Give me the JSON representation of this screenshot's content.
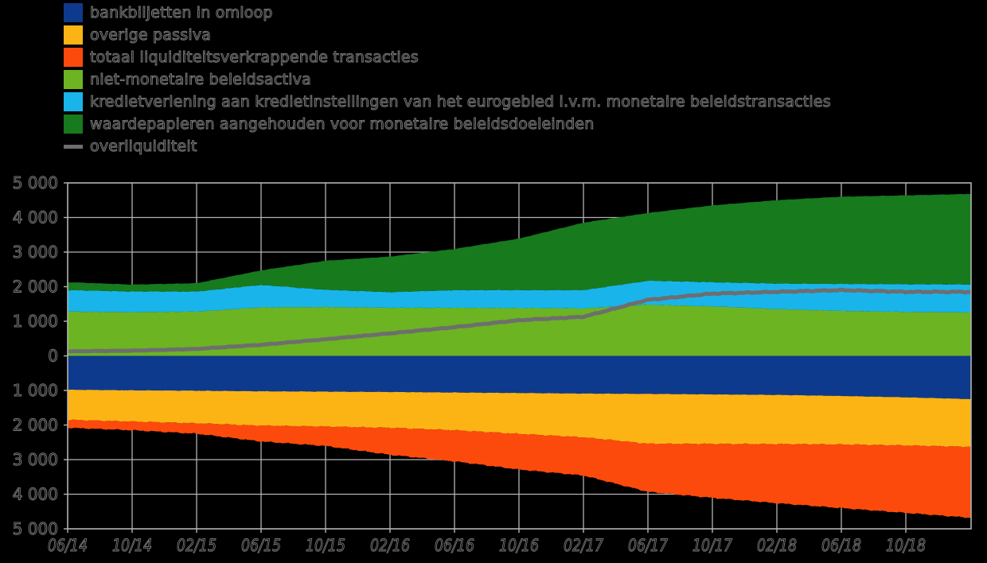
{
  "background": "#000000",
  "axis": {
    "frame_color": "#b3b3b3",
    "grid_color": "#b3b3b3",
    "tick_color": "#b3b3b3",
    "label_fill": "#000000",
    "label_outline": "#7a7a7a"
  },
  "legend": {
    "items": [
      {
        "label": "bankbiljetten in omloop",
        "color": "#0d3a8c",
        "swatch": "rect"
      },
      {
        "label": "overige passiva",
        "color": "#fcb414",
        "swatch": "rect"
      },
      {
        "label": "totaal liquiditeitsverkrappende transacties",
        "color": "#fc4a0c",
        "swatch": "rect"
      },
      {
        "label": "niet-monetaire beleidsactiva",
        "color": "#6cb422",
        "swatch": "rect"
      },
      {
        "label": "kredietverlening aan kredietinstellingen van het eurogebied i.v.m. monetaire beleidstransacties",
        "color": "#19b5ea",
        "swatch": "rect"
      },
      {
        "label": "waardepapieren aangehouden voor monetaire beleidsdoeleinden",
        "color": "#177a1d",
        "swatch": "rect"
      },
      {
        "label": "overliquiditeit",
        "color": "#6e6e6e",
        "swatch": "line"
      }
    ]
  },
  "chart_data": {
    "type": "area",
    "stacked": true,
    "mirrored_axis": true,
    "title": "",
    "xlabel": "",
    "ylabel": "",
    "ylim": [
      -5000,
      5000
    ],
    "grid": true,
    "legend_position": "top-left",
    "control_months": [
      0,
      4,
      8,
      12,
      16,
      20,
      24,
      28,
      32,
      36,
      40,
      44,
      48,
      52,
      56
    ],
    "series_positive": [
      {
        "name": "niet-monetaire beleidsactiva",
        "color": "#6cb422",
        "values": [
          1280,
          1260,
          1280,
          1400,
          1410,
          1390,
          1390,
          1380,
          1370,
          1480,
          1430,
          1350,
          1300,
          1270,
          1255
        ]
      },
      {
        "name": "kredietverlening aan kredietinstellingen van het eurogebied i.v.m. monetaire beleidstransacties",
        "color": "#19b5ea",
        "values": [
          620,
          600,
          580,
          650,
          500,
          450,
          510,
          520,
          530,
          690,
          700,
          740,
          780,
          800,
          810
        ]
      },
      {
        "name": "waardepapieren aangehouden voor monetaire beleidsdoeleinden",
        "color": "#177a1d",
        "values": [
          230,
          200,
          240,
          420,
          840,
          1030,
          1190,
          1490,
          1950,
          1960,
          2220,
          2410,
          2520,
          2570,
          2615
        ]
      }
    ],
    "series_negative": [
      {
        "name": "bankbiljetten in omloop",
        "color": "#0d3a8c",
        "values": [
          980,
          1000,
          1010,
          1025,
          1035,
          1045,
          1060,
          1075,
          1090,
          1100,
          1115,
          1130,
          1160,
          1200,
          1250
        ]
      },
      {
        "name": "overige passiva",
        "color": "#fcb414",
        "values": [
          870,
          900,
          940,
          990,
          1010,
          1035,
          1090,
          1180,
          1265,
          1440,
          1430,
          1420,
          1400,
          1390,
          1380
        ]
      },
      {
        "name": "totaal liquiditeitsverkrappende transacties",
        "color": "#fc4a0c",
        "values": [
          230,
          250,
          300,
          460,
          560,
          780,
          900,
          1030,
          1105,
          1390,
          1560,
          1710,
          1840,
          1950,
          2050
        ]
      }
    ],
    "line_series": {
      "name": "overliquiditeit",
      "color": "#6e6e6e",
      "values": [
        130,
        150,
        200,
        320,
        480,
        650,
        830,
        1030,
        1130,
        1620,
        1800,
        1850,
        1900,
        1850,
        1850
      ]
    },
    "x_ticks": {
      "months": [
        0,
        4,
        8,
        12,
        16,
        20,
        24,
        28,
        32,
        36,
        40,
        44,
        48,
        52
      ],
      "labels": [
        "06/14",
        "10/14",
        "02/15",
        "06/15",
        "10/15",
        "02/16",
        "06/16",
        "10/16",
        "02/17",
        "06/17",
        "10/17",
        "02/18",
        "06/18",
        "10/18"
      ]
    },
    "y_ticks": {
      "values": [
        5000,
        4000,
        3000,
        2000,
        1000,
        0,
        -1000,
        -2000,
        -3000,
        -4000,
        -5000
      ],
      "labels": [
        "5 000",
        "4 000",
        "3 000",
        "2 000",
        "1 000",
        "0",
        "1 000",
        "2 000",
        "3 000",
        "4 000",
        "5 000"
      ]
    }
  }
}
